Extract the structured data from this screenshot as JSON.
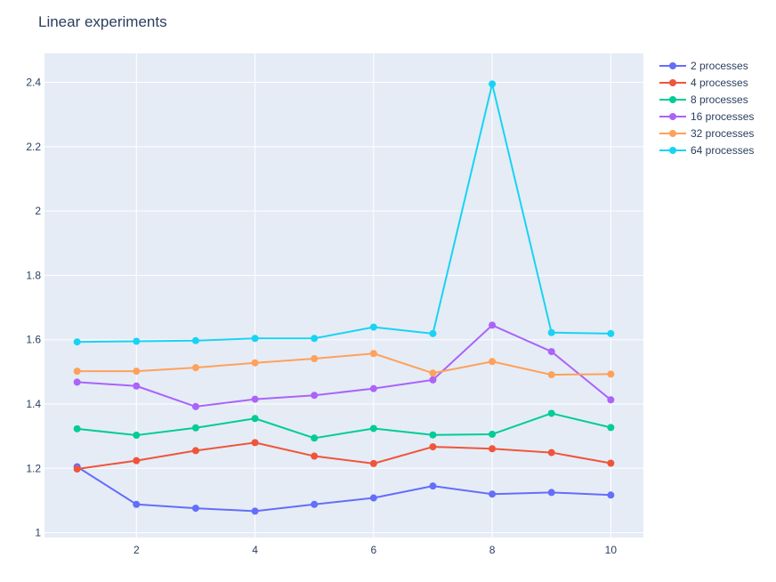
{
  "chart_data": {
    "type": "line",
    "title": "Linear experiments",
    "xlabel": "",
    "ylabel": "",
    "x": [
      1,
      2,
      3,
      4,
      5,
      6,
      7,
      8,
      9,
      10
    ],
    "xlim": [
      0.45,
      10.55
    ],
    "ylim": [
      0.985,
      2.49
    ],
    "x_ticks": [
      2,
      4,
      6,
      8,
      10
    ],
    "y_ticks": [
      1,
      1.2,
      1.4,
      1.6,
      1.8,
      2,
      2.2,
      2.4
    ],
    "x_tick_labels": [
      "2",
      "4",
      "6",
      "8",
      "10"
    ],
    "y_tick_labels": [
      "1",
      "1.2",
      "1.4",
      "1.6",
      "1.8",
      "2",
      "2.2",
      "2.4"
    ],
    "grid": true,
    "legend_position": "top-right outside",
    "plot_background": "#e5ecf6",
    "series": [
      {
        "name": "2 processes",
        "color": "#636efa",
        "values": [
          1.205,
          1.088,
          1.076,
          1.067,
          1.088,
          1.108,
          1.145,
          1.12,
          1.125,
          1.117
        ]
      },
      {
        "name": "4 processes",
        "color": "#ef553b",
        "values": [
          1.198,
          1.224,
          1.255,
          1.28,
          1.238,
          1.215,
          1.267,
          1.261,
          1.249,
          1.216
        ]
      },
      {
        "name": "8 processes",
        "color": "#00cc96",
        "values": [
          1.323,
          1.303,
          1.326,
          1.355,
          1.294,
          1.324,
          1.304,
          1.306,
          1.371,
          1.327
        ]
      },
      {
        "name": "16 processes",
        "color": "#ab63fa",
        "values": [
          1.468,
          1.456,
          1.392,
          1.415,
          1.427,
          1.448,
          1.475,
          1.645,
          1.563,
          1.413
        ]
      },
      {
        "name": "32 processes",
        "color": "#ffa15a",
        "values": [
          1.502,
          1.502,
          1.513,
          1.528,
          1.541,
          1.557,
          1.496,
          1.532,
          1.491,
          1.493
        ]
      },
      {
        "name": "64 processes",
        "color": "#19d3f3",
        "values": [
          1.593,
          1.595,
          1.597,
          1.604,
          1.604,
          1.639,
          1.619,
          2.395,
          1.622,
          1.619
        ]
      }
    ]
  }
}
